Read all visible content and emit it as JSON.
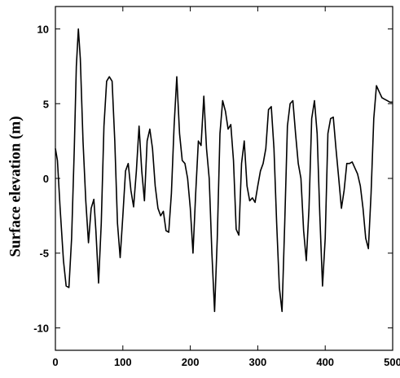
{
  "chart_data": {
    "type": "line",
    "title": "",
    "xlabel": "",
    "ylabel": "Surface elevation (m)",
    "xlim": [
      0,
      500
    ],
    "ylim": [
      -11.5,
      11.5
    ],
    "x_ticks": [
      0,
      100,
      200,
      300,
      400,
      500
    ],
    "y_ticks": [
      10,
      5,
      0,
      -5,
      -10
    ],
    "grid": false,
    "series": [
      {
        "color": "#000000",
        "x": [
          0,
          3,
          7,
          12,
          16,
          20,
          24,
          28,
          31,
          34,
          37,
          41,
          45,
          49,
          53,
          57,
          60,
          64,
          68,
          72,
          76,
          80,
          84,
          88,
          92,
          96,
          100,
          104,
          108,
          112,
          116,
          120,
          124,
          128,
          132,
          136,
          140,
          144,
          148,
          152,
          156,
          160,
          164,
          168,
          172,
          176,
          180,
          184,
          188,
          192,
          196,
          200,
          204,
          208,
          212,
          216,
          220,
          224,
          228,
          232,
          236,
          240,
          244,
          248,
          252,
          256,
          260,
          264,
          268,
          272,
          276,
          280,
          284,
          288,
          292,
          296,
          300,
          304,
          308,
          312,
          316,
          320,
          324,
          328,
          332,
          336,
          340,
          344,
          348,
          352,
          356,
          360,
          364,
          368,
          372,
          376,
          380,
          384,
          388,
          392,
          396,
          400,
          404,
          408,
          412,
          416,
          420,
          424,
          428,
          432,
          436,
          440,
          444,
          448,
          452,
          456,
          460,
          464,
          468,
          472,
          476,
          480,
          484,
          488,
          492,
          496,
          500
        ],
        "y": [
          2,
          1.2,
          -2,
          -5.5,
          -7.2,
          -7.3,
          -4,
          2,
          7.5,
          10,
          8,
          2.5,
          -1.5,
          -4.3,
          -2,
          -1.4,
          -3.5,
          -7,
          -3,
          3.5,
          6.5,
          6.8,
          6.5,
          2.5,
          -3,
          -5.3,
          -2.5,
          0.5,
          1,
          -0.8,
          -1.9,
          0.5,
          3.5,
          0.5,
          -1.5,
          2.5,
          3.3,
          2,
          -0.5,
          -2,
          -2.5,
          -2.2,
          -3.5,
          -3.6,
          -1,
          3.5,
          6.8,
          3,
          1.2,
          1,
          0,
          -2,
          -5,
          -1,
          2.5,
          2.2,
          5.5,
          2,
          0,
          -5,
          -8.9,
          -4,
          3,
          5.2,
          4.5,
          3.3,
          3.6,
          1.2,
          -3.4,
          -3.8,
          1,
          2.5,
          -0.5,
          -1.5,
          -1.3,
          -1.6,
          -0.5,
          0.5,
          1,
          2,
          4.6,
          4.8,
          2,
          -3,
          -7.3,
          -8.9,
          -3,
          3.5,
          5,
          5.2,
          3,
          1,
          0,
          -3.5,
          -5.5,
          -2,
          4,
          5.2,
          3,
          -2.5,
          -7.2,
          -4,
          3,
          4,
          4.1,
          2,
          0,
          -2,
          -0.8,
          1,
          1,
          1.1,
          0.7,
          0.3,
          -0.5,
          -2,
          -4,
          -4.7,
          -1,
          4,
          6.2,
          5.8,
          5.4,
          5.3,
          5.2,
          5.1,
          5.1
        ]
      }
    ]
  }
}
